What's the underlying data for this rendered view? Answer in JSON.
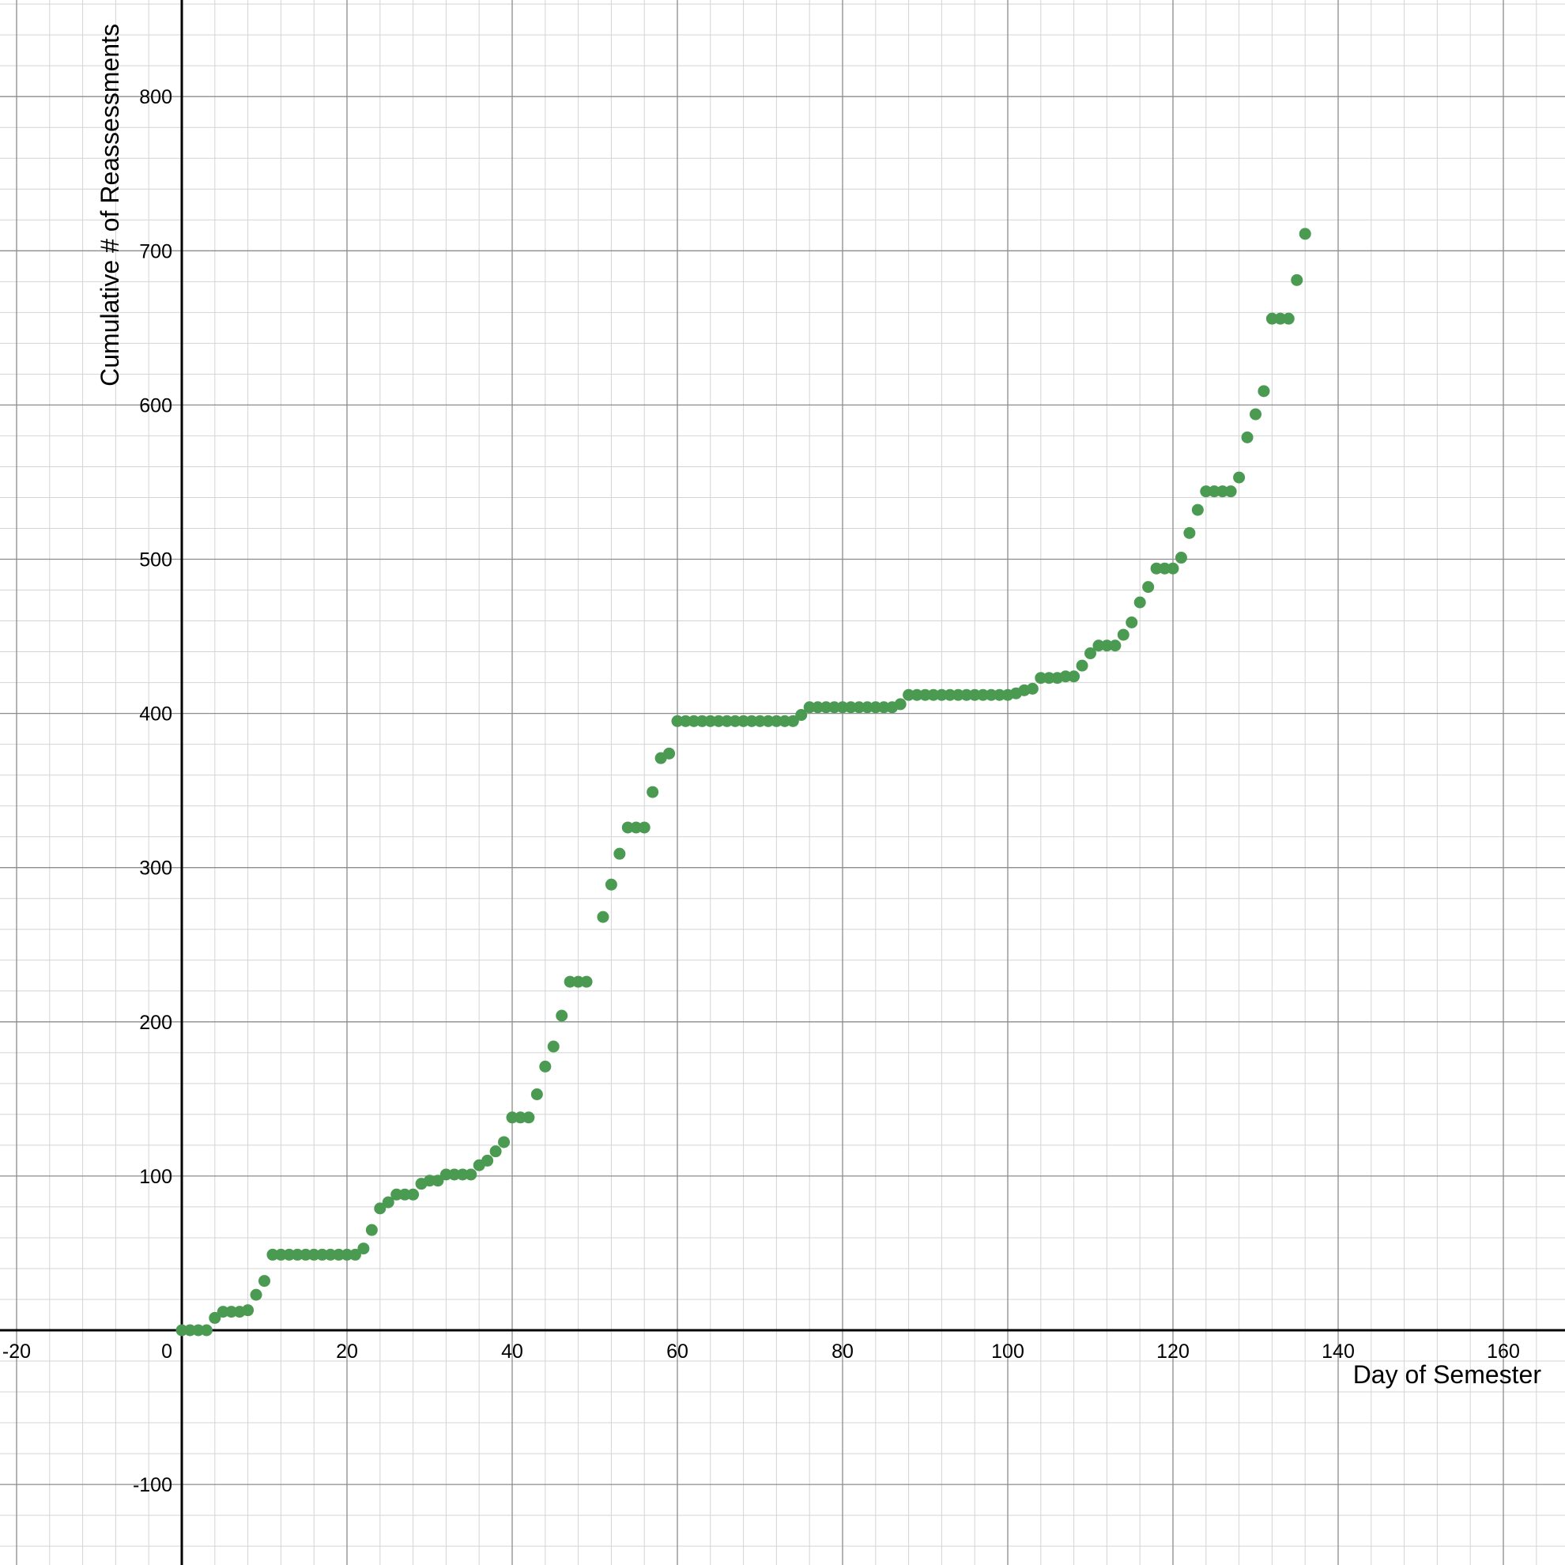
{
  "chart_data": {
    "type": "scatter",
    "xlabel": "Day of Semester",
    "ylabel": "Cumulative # of Reassessments",
    "xlim": [
      -22,
      168
    ],
    "ylim": [
      -151,
      871
    ],
    "grid": true,
    "major_step_x": 20,
    "minor_step_x": 4,
    "major_step_y": 100,
    "minor_step_y": 20,
    "x_ticks": [
      {
        "value": -20,
        "label": "-20"
      },
      {
        "value": 20,
        "label": "20"
      },
      {
        "value": 40,
        "label": "40"
      },
      {
        "value": 60,
        "label": "60"
      },
      {
        "value": 80,
        "label": "80"
      },
      {
        "value": 100,
        "label": "100"
      },
      {
        "value": 120,
        "label": "120"
      },
      {
        "value": 140,
        "label": "140"
      },
      {
        "value": 160,
        "label": "160"
      }
    ],
    "y_ticks": [
      {
        "value": -100,
        "label": "-100"
      },
      {
        "value": 100,
        "label": "100"
      },
      {
        "value": 200,
        "label": "200"
      },
      {
        "value": 300,
        "label": "300"
      },
      {
        "value": 400,
        "label": "400"
      },
      {
        "value": 500,
        "label": "500"
      },
      {
        "value": 600,
        "label": "600"
      },
      {
        "value": 700,
        "label": "700"
      },
      {
        "value": 800,
        "label": "800"
      }
    ],
    "origin_label": "0",
    "colors": {
      "point": "#4a9a52",
      "axis": "#000000",
      "major_grid": "#8c8c8c",
      "minor_grid": "#d4d4d4"
    },
    "series": [
      {
        "x": [
          0,
          1,
          2,
          3,
          4,
          5,
          6,
          7,
          8,
          9,
          10,
          11,
          12,
          13,
          14,
          15,
          16,
          17,
          18,
          19,
          20,
          21,
          22,
          23,
          24,
          25,
          26,
          27,
          28,
          29,
          30,
          31,
          32,
          33,
          34,
          35,
          36,
          37,
          38,
          39,
          40,
          41,
          42,
          43,
          44,
          45,
          46,
          47,
          48,
          49,
          51,
          52,
          53,
          54,
          55,
          56,
          57,
          58,
          59,
          60,
          61,
          62,
          63,
          64,
          65,
          66,
          67,
          68,
          69,
          70,
          71,
          72,
          73,
          74,
          75,
          76,
          77,
          78,
          79,
          80,
          81,
          82,
          83,
          84,
          85,
          86,
          87,
          88,
          89,
          90,
          91,
          92,
          93,
          94,
          95,
          96,
          97,
          98,
          99,
          100,
          101,
          102,
          103,
          104,
          105,
          106,
          107,
          108,
          109,
          110,
          111,
          112,
          113,
          114,
          115,
          116,
          117,
          118,
          119,
          120,
          121,
          122,
          123,
          124,
          125,
          126,
          127,
          128,
          129,
          130,
          131,
          132,
          133,
          134,
          135,
          136
        ],
        "y": [
          0,
          0,
          0,
          0,
          8,
          12,
          12,
          12,
          13,
          23,
          32,
          49,
          49,
          49,
          49,
          49,
          49,
          49,
          49,
          49,
          49,
          49,
          53,
          65,
          79,
          83,
          88,
          88,
          88,
          95,
          97,
          97,
          101,
          101,
          101,
          101,
          107,
          110,
          116,
          122,
          138,
          138,
          138,
          153,
          171,
          184,
          204,
          226,
          226,
          226,
          268,
          289,
          309,
          326,
          326,
          326,
          349,
          371,
          374,
          395,
          395,
          395,
          395,
          395,
          395,
          395,
          395,
          395,
          395,
          395,
          395,
          395,
          395,
          395,
          399,
          404,
          404,
          404,
          404,
          404,
          404,
          404,
          404,
          404,
          404,
          404,
          406,
          412,
          412,
          412,
          412,
          412,
          412,
          412,
          412,
          412,
          412,
          412,
          412,
          412,
          413,
          415,
          416,
          423,
          423,
          423,
          424,
          424,
          431,
          439,
          444,
          444,
          444,
          451,
          459,
          472,
          482,
          494,
          494,
          494,
          501,
          517,
          532,
          544,
          544,
          544,
          544,
          553,
          579,
          594,
          609,
          656,
          656,
          656,
          681,
          711
        ]
      }
    ]
  }
}
